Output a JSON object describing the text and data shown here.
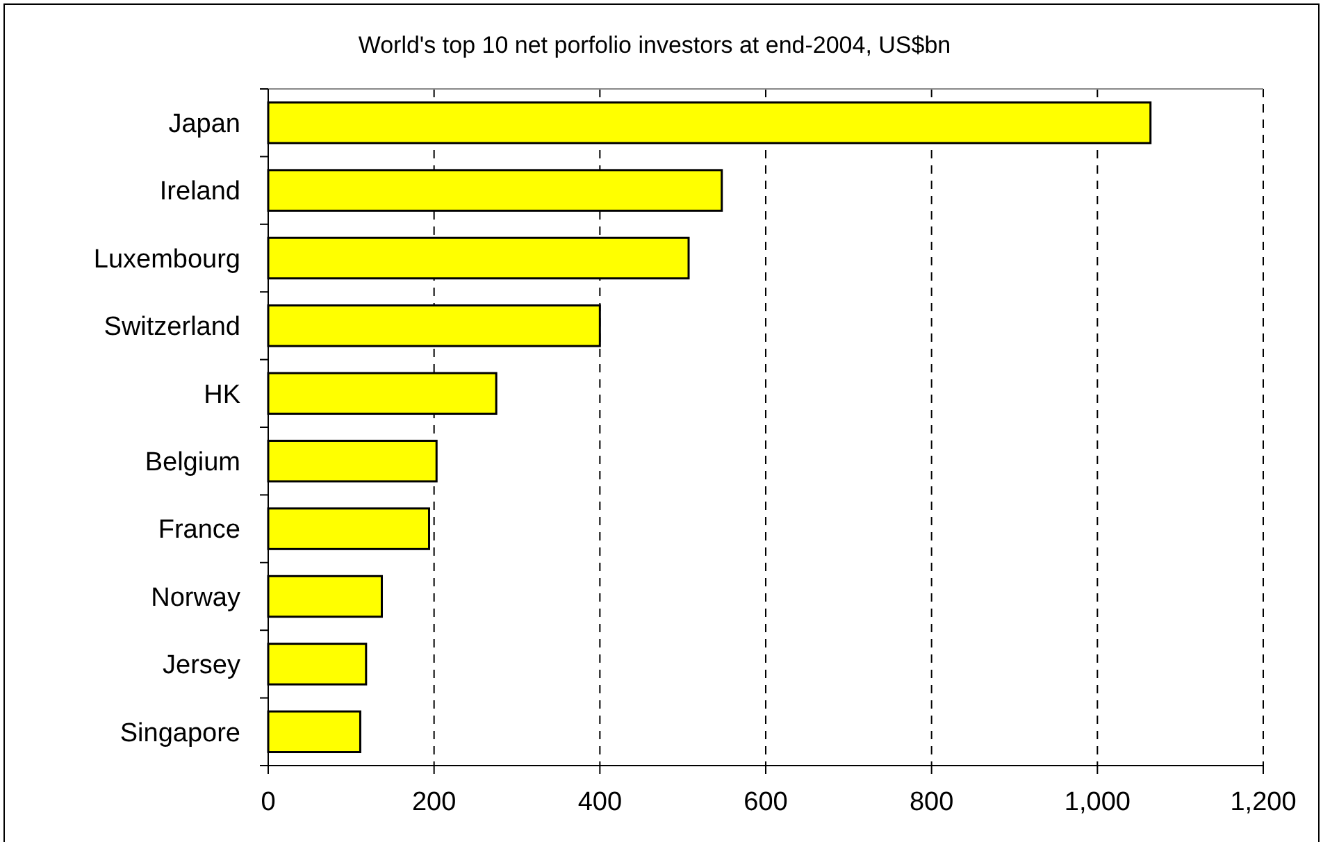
{
  "chart_data": {
    "type": "bar",
    "orientation": "horizontal",
    "title": "World's top 10 net porfolio investors at end-2004, US$bn",
    "categories": [
      "Japan",
      "Ireland",
      "Luxembourg",
      "Switzerland",
      "HK",
      "Belgium",
      "France",
      "Norway",
      "Jersey",
      "Singapore"
    ],
    "values": [
      1064,
      547,
      507,
      400,
      275,
      203,
      194,
      137,
      118,
      111
    ],
    "color": "#ffff00",
    "xlim": [
      0,
      1200
    ],
    "xticks": [
      0,
      200,
      400,
      600,
      800,
      {
        "value": 1000,
        "label": "1,000"
      },
      {
        "value": 1200,
        "label": "1,200"
      }
    ],
    "grid": "x"
  }
}
